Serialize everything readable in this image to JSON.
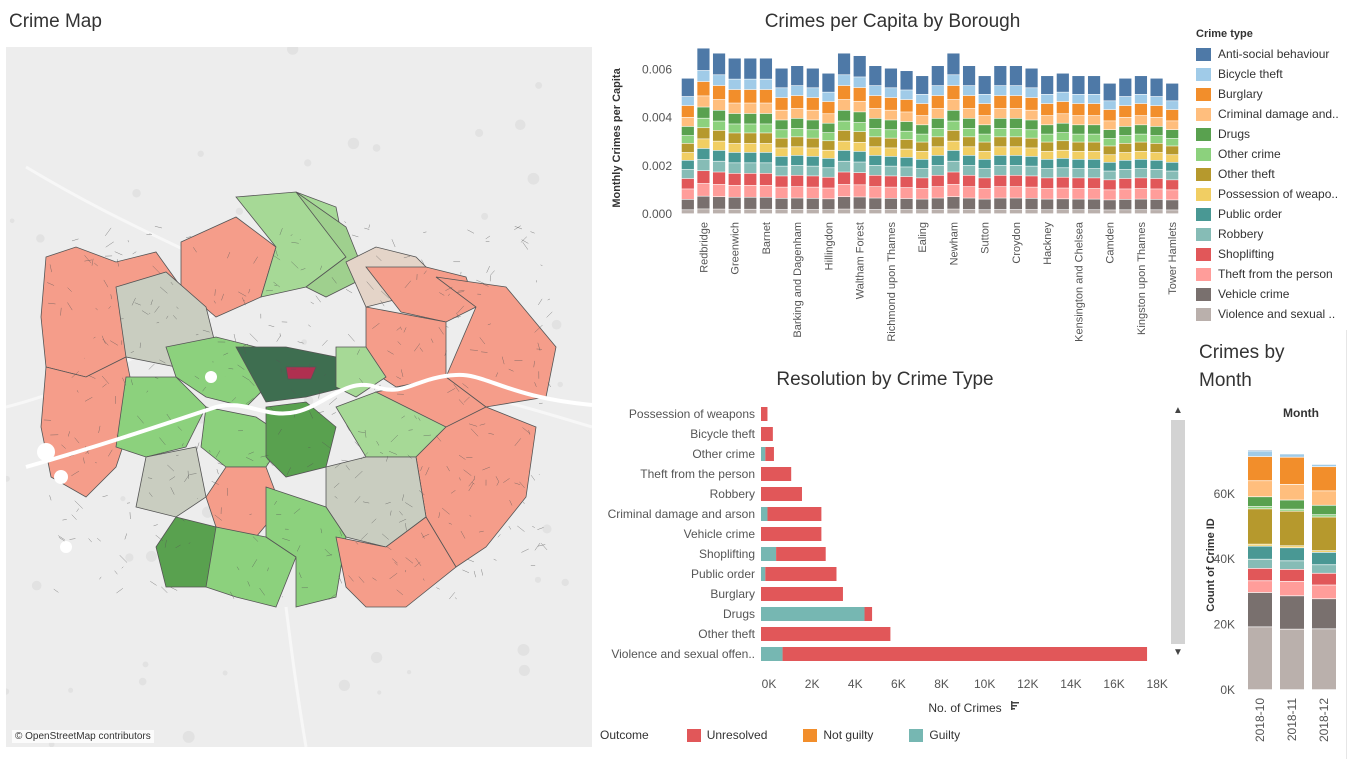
{
  "titles": {
    "map": "Crime Map",
    "crimes_per_capita": "Crimes per Capita by Borough",
    "resolution": "Resolution by Crime Type",
    "by_month": "Crimes by Month"
  },
  "map": {
    "credit": "© OpenStreetMap contributors",
    "colors": {
      "background": "#ededed",
      "water": "#ffffff",
      "borders": "#555555"
    }
  },
  "crime_types": [
    {
      "name": "Anti-social behaviour",
      "label": "Anti-social behaviour",
      "color": "#4e79a7"
    },
    {
      "name": "Bicycle theft",
      "label": "Bicycle theft",
      "color": "#a0cbe8"
    },
    {
      "name": "Burglary",
      "label": "Burglary",
      "color": "#f28e2b"
    },
    {
      "name": "Criminal damage and arson",
      "label": "Criminal damage and..",
      "color": "#ffbe7d"
    },
    {
      "name": "Drugs",
      "label": "Drugs",
      "color": "#59a14f"
    },
    {
      "name": "Other crime",
      "label": "Other crime",
      "color": "#8cd17d"
    },
    {
      "name": "Other theft",
      "label": "Other theft",
      "color": "#b6992d"
    },
    {
      "name": "Possession of weapons",
      "label": "Possession of weapo..",
      "color": "#f1ce63"
    },
    {
      "name": "Public order",
      "label": "Public order",
      "color": "#499894"
    },
    {
      "name": "Robbery",
      "label": "Robbery",
      "color": "#86bcb6"
    },
    {
      "name": "Shoplifting",
      "label": "Shoplifting",
      "color": "#e15759"
    },
    {
      "name": "Theft from the person",
      "label": "Theft from the person",
      "color": "#ff9d9a"
    },
    {
      "name": "Vehicle crime",
      "label": "Vehicle crime",
      "color": "#79706e"
    },
    {
      "name": "Violence and sexual offences",
      "label": "Violence and sexual ..",
      "color": "#bab0ac"
    }
  ],
  "legend_header": "Crime type",
  "chart_data": [
    {
      "type": "bar",
      "stacked": true,
      "title": "Crimes per Capita by Borough",
      "ylabel": "Monthly Crimes per Capita",
      "ylim": [
        0,
        0.0068
      ],
      "yticks": [
        "0.000",
        "0.002",
        "0.004",
        "0.006"
      ],
      "ytick_values": [
        0,
        0.002,
        0.004,
        0.006
      ],
      "categories_count": 32,
      "x_tick_labels": [
        "Redbridge",
        "Greenwich",
        "Barnet",
        "Barking and Dagenham",
        "Hillingdon",
        "Waltham Forest",
        "Richmond upon Thames",
        "Ealing",
        "Newham",
        "Sutton",
        "Croydon",
        "Hackney",
        "Kensington and Chelsea",
        "Camden",
        "Kingston upon Thames",
        "Tower Hamlets"
      ],
      "totals": [
        0.0054,
        0.0066,
        0.0064,
        0.0062,
        0.0062,
        0.0062,
        0.0058,
        0.0059,
        0.0058,
        0.0056,
        0.0064,
        0.0063,
        0.0059,
        0.0058,
        0.0057,
        0.0055,
        0.0059,
        0.0064,
        0.0059,
        0.0055,
        0.0059,
        0.0059,
        0.0058,
        0.0055,
        0.0056,
        0.0055,
        0.0055,
        0.0052,
        0.0054,
        0.0055,
        0.0054,
        0.0052
      ],
      "segment_shares": [
        0.14,
        0.07,
        0.09,
        0.07,
        0.07,
        0.06,
        0.07,
        0.06,
        0.07,
        0.07,
        0.08,
        0.08,
        0.08,
        0.03
      ],
      "segment_order_note": "bottom to top: Violence and sexual offences, Vehicle crime, Theft from the person, Shoplifting, Robbery, Public order, Possession of weapons, Other theft, Other crime, Drugs, Criminal damage and arson, Burglary, Bicycle theft, Anti-social behaviour"
    },
    {
      "type": "bar",
      "orientation": "horizontal",
      "stacked": true,
      "title": "Resolution by Crime Type",
      "xlabel": "No. of Crimes",
      "xlim": [
        0,
        18500
      ],
      "xticks": [
        "0K",
        "2K",
        "4K",
        "6K",
        "8K",
        "10K",
        "12K",
        "14K",
        "16K",
        "18K"
      ],
      "xtick_values": [
        0,
        2000,
        4000,
        6000,
        8000,
        10000,
        12000,
        14000,
        16000,
        18000
      ],
      "categories": [
        "Possession of weapons",
        "Bicycle theft",
        "Other crime",
        "Theft from the person",
        "Robbery",
        "Criminal damage and arson",
        "Vehicle crime",
        "Shoplifting",
        "Public order",
        "Burglary",
        "Drugs",
        "Other theft",
        "Violence and sexual offen.."
      ],
      "series": [
        {
          "name": "Guilty",
          "color": "#76b7b2",
          "values": [
            0,
            0,
            200,
            0,
            0,
            300,
            0,
            700,
            200,
            0,
            4800,
            0,
            1000
          ]
        },
        {
          "name": "Not guilty",
          "color": "#f28e2b",
          "values": [
            0,
            0,
            0,
            0,
            0,
            0,
            0,
            0,
            0,
            0,
            0,
            0,
            0
          ]
        },
        {
          "name": "Unresolved",
          "color": "#e15759",
          "values": [
            300,
            550,
            400,
            1400,
            1900,
            2500,
            2800,
            2300,
            3300,
            3800,
            350,
            6000,
            16900
          ]
        }
      ],
      "legend_title": "Outcome",
      "legend": [
        {
          "name": "Unresolved",
          "color": "#e15759"
        },
        {
          "name": "Not guilty",
          "color": "#f28e2b"
        },
        {
          "name": "Guilty",
          "color": "#76b7b2"
        }
      ]
    },
    {
      "type": "bar",
      "stacked": true,
      "title": "Crimes by Month",
      "xlabel": "Month",
      "ylabel": "Count of Crime ID",
      "ylim": [
        0,
        78000
      ],
      "yticks": [
        "0K",
        "20K",
        "40K",
        "60K"
      ],
      "ytick_values": [
        0,
        20000,
        40000,
        60000
      ],
      "categories": [
        "2018-10",
        "2018-11",
        "2018-12"
      ],
      "segments": [
        {
          "name": "Violence and sexual offences",
          "values": [
            19200,
            18500,
            18600
          ]
        },
        {
          "name": "Vehicle crime",
          "values": [
            10500,
            10200,
            9200
          ]
        },
        {
          "name": "Theft from the person",
          "values": [
            3600,
            4400,
            4200
          ]
        },
        {
          "name": "Shoplifting",
          "values": [
            3800,
            3700,
            3600
          ]
        },
        {
          "name": "Robbery",
          "values": [
            2800,
            2600,
            2600
          ]
        },
        {
          "name": "Public order",
          "values": [
            4000,
            4000,
            3800
          ]
        },
        {
          "name": "Possession of weapons",
          "values": [
            600,
            600,
            500
          ]
        },
        {
          "name": "Other theft",
          "values": [
            10800,
            10600,
            10300
          ]
        },
        {
          "name": "Other crime",
          "values": [
            700,
            600,
            700
          ]
        },
        {
          "name": "Drugs",
          "values": [
            3000,
            2800,
            2900
          ]
        },
        {
          "name": "Criminal damage and arson",
          "values": [
            4900,
            4800,
            4400
          ]
        },
        {
          "name": "Burglary",
          "values": [
            7400,
            8300,
            7400
          ]
        },
        {
          "name": "Bicycle theft",
          "values": [
            1700,
            1000,
            700
          ]
        },
        {
          "name": "Anti-social behaviour",
          "values": [
            300,
            200,
            200
          ]
        }
      ]
    }
  ]
}
